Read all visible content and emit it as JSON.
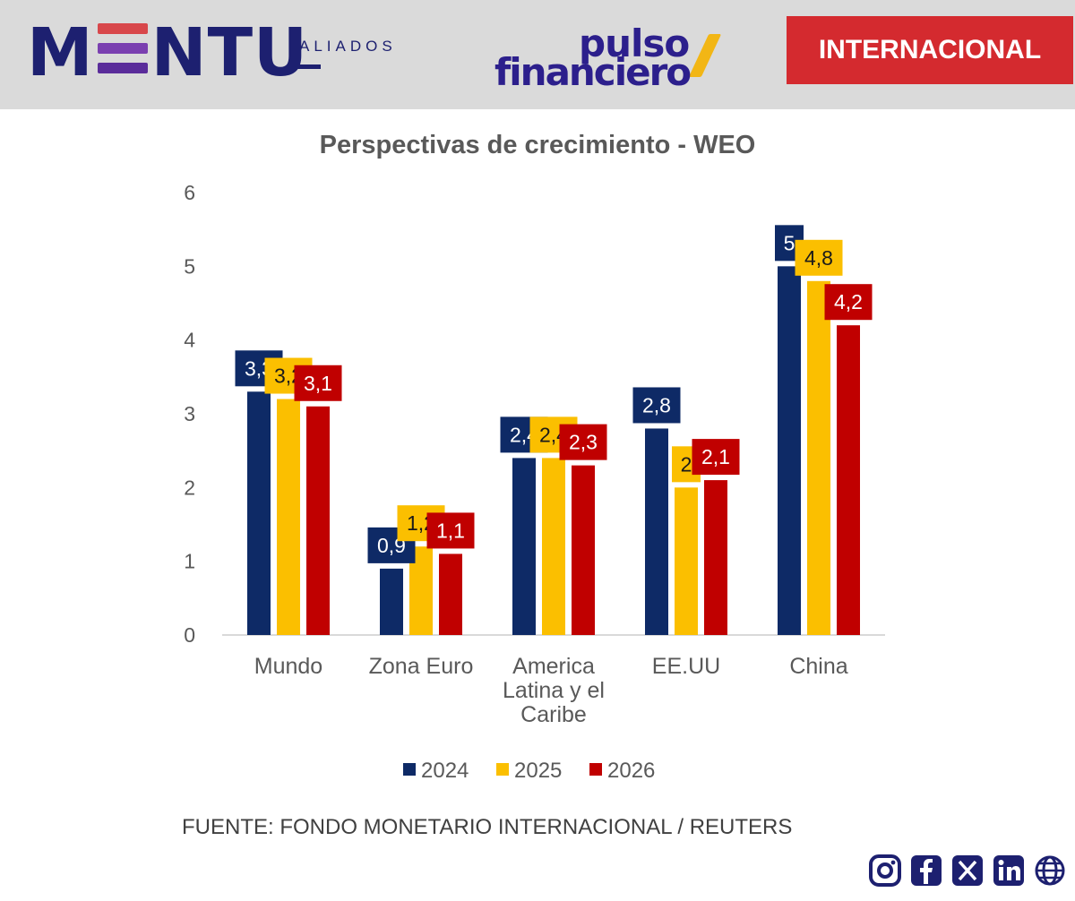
{
  "header": {
    "brand_left": "MENTU",
    "brand_left_tag": "ALIADOS",
    "brand_center_line1": "pulso",
    "brand_center_line2": "financiero",
    "section_badge": "INTERNACIONAL"
  },
  "colors": {
    "navy": "#0e2a66",
    "yellow": "#fbbf00",
    "red": "#c00000",
    "badge_red": "#d42a2f",
    "brand_navy": "#1d2070",
    "brand_purple": "#6a3aa8"
  },
  "chart_data": {
    "type": "bar",
    "title": "Perspectivas de crecimiento - WEO",
    "categories": [
      [
        "Mundo"
      ],
      [
        "Zona Euro"
      ],
      [
        "America",
        "Latina y el",
        "Caribe"
      ],
      [
        "EE.UU"
      ],
      [
        "China"
      ]
    ],
    "series": [
      {
        "name": "2024",
        "color": "#0e2a66",
        "values": [
          3.3,
          0.9,
          2.4,
          2.8,
          5.0
        ],
        "labels": [
          "3,3",
          "0,9",
          "2,4",
          "2,8",
          "5"
        ]
      },
      {
        "name": "2025",
        "color": "#fbbf00",
        "values": [
          3.2,
          1.2,
          2.4,
          2.0,
          4.8
        ],
        "labels": [
          "3,2",
          "1,2",
          "2,4",
          "2",
          "4,8"
        ]
      },
      {
        "name": "2026",
        "color": "#c00000",
        "values": [
          3.1,
          1.1,
          2.3,
          2.1,
          4.2
        ],
        "labels": [
          "3,1",
          "1,1",
          "2,3",
          "2,1",
          "4,2"
        ]
      }
    ],
    "y_ticks": [
      "0",
      "1",
      "2",
      "3",
      "4",
      "5",
      "6"
    ],
    "ylim": [
      0,
      6
    ],
    "legend_position": "bottom",
    "grid": false
  },
  "footer": {
    "source": "FUENTE: FONDO MONETARIO INTERNACIONAL / REUTERS",
    "social_icons": [
      "instagram-icon",
      "facebook-icon",
      "x-icon",
      "linkedin-icon",
      "globe-icon"
    ]
  }
}
